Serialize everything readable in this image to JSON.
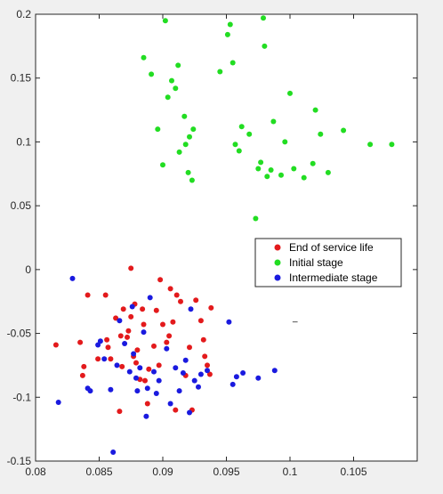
{
  "chart_data": {
    "type": "scatter",
    "title": "",
    "xlabel": "",
    "ylabel": "",
    "xlim": [
      0.08,
      0.11
    ],
    "ylim": [
      -0.15,
      0.2
    ],
    "x_ticks": [
      0.08,
      0.085,
      0.09,
      0.095,
      0.1,
      0.105
    ],
    "x_tick_labels": [
      "0.08",
      "0.085",
      "0.09",
      "0.095",
      "0.1",
      "0.105"
    ],
    "y_ticks": [
      -0.15,
      -0.1,
      -0.05,
      0,
      0.05,
      0.1,
      0.15,
      0.2
    ],
    "y_tick_labels": [
      "-0.15",
      "-0.1",
      "-0.05",
      "0",
      "0.05",
      "0.1",
      "0.15",
      "0.2"
    ],
    "grid": false,
    "legend_position": "right",
    "series": [
      {
        "name": "End of service life",
        "color": "#e31a1c",
        "points": [
          [
            0.0816,
            -0.059
          ],
          [
            0.0835,
            -0.057
          ],
          [
            0.0837,
            -0.083
          ],
          [
            0.0838,
            -0.076
          ],
          [
            0.0841,
            -0.02
          ],
          [
            0.0849,
            -0.07
          ],
          [
            0.0855,
            -0.02
          ],
          [
            0.0856,
            -0.055
          ],
          [
            0.0857,
            -0.061
          ],
          [
            0.0859,
            -0.07
          ],
          [
            0.0863,
            -0.038
          ],
          [
            0.0866,
            -0.111
          ],
          [
            0.0867,
            -0.052
          ],
          [
            0.0868,
            -0.076
          ],
          [
            0.0869,
            -0.031
          ],
          [
            0.0872,
            -0.053
          ],
          [
            0.0873,
            -0.048
          ],
          [
            0.0875,
            -0.037
          ],
          [
            0.0875,
            0.001
          ],
          [
            0.0877,
            -0.068
          ],
          [
            0.0878,
            -0.027
          ],
          [
            0.0879,
            -0.073
          ],
          [
            0.088,
            -0.063
          ],
          [
            0.0882,
            -0.086
          ],
          [
            0.0884,
            -0.031
          ],
          [
            0.0885,
            -0.043
          ],
          [
            0.0886,
            -0.087
          ],
          [
            0.0888,
            -0.105
          ],
          [
            0.0889,
            -0.078
          ],
          [
            0.0893,
            -0.06
          ],
          [
            0.0895,
            -0.032
          ],
          [
            0.0897,
            -0.075
          ],
          [
            0.0898,
            -0.008
          ],
          [
            0.09,
            -0.043
          ],
          [
            0.0903,
            -0.057
          ],
          [
            0.0905,
            -0.052
          ],
          [
            0.0906,
            -0.015
          ],
          [
            0.0908,
            -0.041
          ],
          [
            0.091,
            -0.11
          ],
          [
            0.0911,
            -0.02
          ],
          [
            0.0914,
            -0.025
          ],
          [
            0.0918,
            -0.083
          ],
          [
            0.0921,
            -0.061
          ],
          [
            0.0923,
            -0.11
          ],
          [
            0.0926,
            -0.024
          ],
          [
            0.093,
            -0.04
          ],
          [
            0.0932,
            -0.055
          ],
          [
            0.0935,
            -0.075
          ],
          [
            0.0937,
            -0.082
          ],
          [
            0.0938,
            -0.03
          ],
          [
            0.0933,
            -0.068
          ]
        ]
      },
      {
        "name": "Initial stage",
        "color": "#22dd22",
        "points": [
          [
            0.0885,
            0.166
          ],
          [
            0.0891,
            0.153
          ],
          [
            0.0896,
            0.11
          ],
          [
            0.09,
            0.082
          ],
          [
            0.0902,
            0.195
          ],
          [
            0.0904,
            0.135
          ],
          [
            0.0907,
            0.148
          ],
          [
            0.091,
            0.142
          ],
          [
            0.0912,
            0.16
          ],
          [
            0.0913,
            0.092
          ],
          [
            0.0917,
            0.12
          ],
          [
            0.0918,
            0.098
          ],
          [
            0.092,
            0.076
          ],
          [
            0.0921,
            0.104
          ],
          [
            0.0923,
            0.07
          ],
          [
            0.0924,
            0.11
          ],
          [
            0.0945,
            0.155
          ],
          [
            0.0951,
            0.184
          ],
          [
            0.0953,
            0.192
          ],
          [
            0.0955,
            0.162
          ],
          [
            0.0957,
            0.098
          ],
          [
            0.096,
            0.093
          ],
          [
            0.0962,
            0.112
          ],
          [
            0.0968,
            0.106
          ],
          [
            0.0973,
            0.04
          ],
          [
            0.0975,
            0.079
          ],
          [
            0.0977,
            0.084
          ],
          [
            0.0979,
            0.197
          ],
          [
            0.098,
            0.175
          ],
          [
            0.0982,
            0.073
          ],
          [
            0.0985,
            0.078
          ],
          [
            0.0987,
            0.116
          ],
          [
            0.0993,
            0.074
          ],
          [
            0.0996,
            0.1
          ],
          [
            0.1,
            0.138
          ],
          [
            0.1003,
            0.079
          ],
          [
            0.1011,
            0.072
          ],
          [
            0.1018,
            0.083
          ],
          [
            0.102,
            0.125
          ],
          [
            0.1024,
            0.106
          ],
          [
            0.103,
            0.076
          ],
          [
            0.1042,
            0.109
          ],
          [
            0.1063,
            0.098
          ],
          [
            0.108,
            0.098
          ]
        ]
      },
      {
        "name": "Intermediate stage",
        "color": "#1a1adf",
        "points": [
          [
            0.0818,
            -0.104
          ],
          [
            0.0829,
            -0.007
          ],
          [
            0.0841,
            -0.093
          ],
          [
            0.0843,
            -0.095
          ],
          [
            0.0849,
            -0.059
          ],
          [
            0.0851,
            -0.056
          ],
          [
            0.0854,
            -0.07
          ],
          [
            0.0859,
            -0.094
          ],
          [
            0.0861,
            -0.143
          ],
          [
            0.0864,
            -0.075
          ],
          [
            0.0866,
            -0.04
          ],
          [
            0.087,
            -0.058
          ],
          [
            0.0874,
            -0.08
          ],
          [
            0.0876,
            -0.029
          ],
          [
            0.0877,
            -0.066
          ],
          [
            0.0879,
            -0.085
          ],
          [
            0.088,
            -0.095
          ],
          [
            0.0882,
            -0.077
          ],
          [
            0.0885,
            -0.049
          ],
          [
            0.0887,
            -0.115
          ],
          [
            0.0888,
            -0.093
          ],
          [
            0.089,
            -0.022
          ],
          [
            0.0893,
            -0.08
          ],
          [
            0.0895,
            -0.097
          ],
          [
            0.0897,
            -0.087
          ],
          [
            0.0903,
            -0.062
          ],
          [
            0.0906,
            -0.105
          ],
          [
            0.091,
            -0.077
          ],
          [
            0.0913,
            -0.095
          ],
          [
            0.0916,
            -0.081
          ],
          [
            0.0918,
            -0.071
          ],
          [
            0.0921,
            -0.112
          ],
          [
            0.0922,
            -0.031
          ],
          [
            0.0925,
            -0.087
          ],
          [
            0.0928,
            -0.092
          ],
          [
            0.093,
            -0.082
          ],
          [
            0.0935,
            -0.079
          ],
          [
            0.0952,
            -0.041
          ],
          [
            0.0955,
            -0.09
          ],
          [
            0.0958,
            -0.084
          ],
          [
            0.0963,
            -0.081
          ],
          [
            0.0975,
            -0.085
          ],
          [
            0.0988,
            -0.079
          ]
        ]
      }
    ]
  }
}
